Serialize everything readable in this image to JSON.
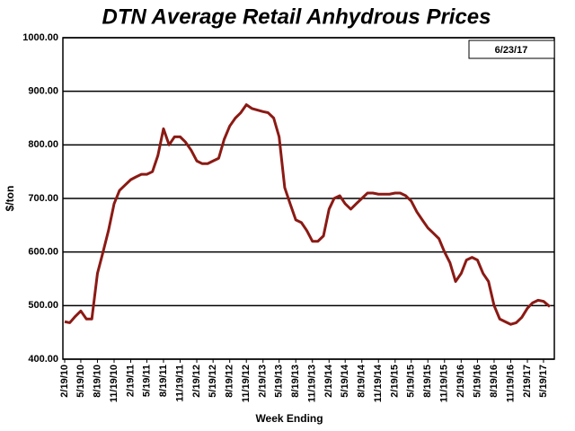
{
  "chart_data": {
    "type": "line",
    "title": "DTN Average Retail Anhydrous Prices",
    "annotation": "6/23/17",
    "y_label": "$/ton",
    "x_label": "Week Ending",
    "grid": true,
    "x": [
      "2/19/10",
      "3/19/10",
      "4/19/10",
      "5/19/10",
      "6/19/10",
      "7/19/10",
      "8/19/10",
      "9/19/10",
      "10/19/10",
      "11/19/10",
      "12/19/10",
      "1/19/11",
      "2/19/11",
      "3/19/11",
      "4/19/11",
      "5/19/11",
      "6/19/11",
      "7/19/11",
      "8/19/11",
      "9/19/11",
      "10/19/11",
      "11/19/11",
      "12/19/11",
      "1/19/12",
      "2/19/12",
      "3/19/12",
      "4/19/12",
      "5/19/12",
      "6/19/12",
      "7/19/12",
      "8/19/12",
      "9/19/12",
      "10/19/12",
      "11/19/12",
      "12/19/12",
      "1/19/13",
      "2/19/13",
      "3/19/13",
      "4/19/13",
      "5/19/13",
      "6/19/13",
      "7/19/13",
      "8/19/13",
      "9/19/13",
      "10/19/13",
      "11/19/13",
      "12/19/13",
      "1/19/14",
      "2/19/14",
      "3/19/14",
      "4/19/14",
      "5/19/14",
      "6/19/14",
      "7/19/14",
      "8/19/14",
      "9/19/14",
      "10/19/14",
      "11/19/14",
      "12/19/14",
      "1/19/15",
      "2/19/15",
      "3/19/15",
      "4/19/15",
      "5/19/15",
      "6/19/15",
      "7/19/15",
      "8/19/15",
      "9/19/15",
      "10/19/15",
      "11/19/15",
      "12/19/15",
      "1/19/16",
      "2/19/16",
      "3/19/16",
      "4/19/16",
      "5/19/16",
      "6/19/16",
      "7/19/16",
      "8/19/16",
      "9/19/16",
      "10/19/16",
      "11/19/16",
      "12/19/16",
      "1/19/17",
      "2/19/17",
      "3/19/17",
      "4/19/17",
      "5/19/17",
      "6/23/17"
    ],
    "series": [
      {
        "name": "Anhydrous",
        "color": "#8b1a14",
        "values": [
          470,
          468,
          480,
          490,
          475,
          475,
          560,
          600,
          640,
          690,
          715,
          725,
          735,
          740,
          745,
          745,
          750,
          780,
          830,
          800,
          815,
          815,
          805,
          790,
          770,
          765,
          765,
          770,
          775,
          810,
          835,
          850,
          860,
          875,
          868,
          865,
          862,
          860,
          850,
          815,
          720,
          690,
          660,
          655,
          640,
          620,
          620,
          630,
          680,
          700,
          705,
          690,
          680,
          690,
          700,
          710,
          710,
          708,
          708,
          708,
          710,
          710,
          705,
          695,
          675,
          660,
          645,
          635,
          625,
          600,
          580,
          545,
          560,
          585,
          590,
          585,
          560,
          545,
          500,
          475,
          470,
          465,
          468,
          478,
          495,
          505,
          510,
          508,
          498
        ]
      }
    ],
    "xlim": [
      "2/19/10",
      "6/23/17"
    ],
    "xticks": [
      "2/19/10",
      "5/19/10",
      "8/19/10",
      "11/19/10",
      "2/19/11",
      "5/19/11",
      "8/19/11",
      "11/19/11",
      "2/19/12",
      "5/19/12",
      "8/19/12",
      "11/19/12",
      "2/19/13",
      "5/19/13",
      "8/19/13",
      "11/19/13",
      "2/19/14",
      "5/19/14",
      "8/19/14",
      "11/19/14",
      "2/19/15",
      "5/19/15",
      "8/19/15",
      "11/19/15",
      "2/19/16",
      "5/19/16",
      "8/19/16",
      "11/19/16",
      "2/19/17",
      "5/19/17"
    ],
    "ylim": [
      400,
      1000
    ],
    "yticks": [
      {
        "value": 400,
        "label": "400.00"
      },
      {
        "value": 500,
        "label": "500.00"
      },
      {
        "value": 600,
        "label": "600.00"
      },
      {
        "value": 700,
        "label": "700.00"
      },
      {
        "value": 800,
        "label": "800.00"
      },
      {
        "value": 900,
        "label": "900.00"
      },
      {
        "value": 1000,
        "label": "1000.00"
      }
    ]
  }
}
